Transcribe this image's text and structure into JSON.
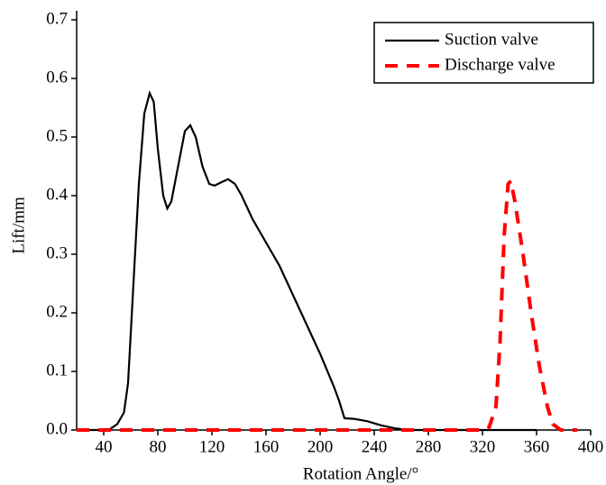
{
  "chart_data": {
    "type": "line",
    "xlabel": "Rotation Angle/°",
    "ylabel": "Lift/mm",
    "xlim": [
      20,
      400
    ],
    "xticks": [
      40,
      80,
      120,
      160,
      200,
      240,
      280,
      320,
      360,
      400
    ],
    "ylim": [
      0,
      0.7
    ],
    "yticks": [
      {
        "value": 0,
        "label": "0.0"
      },
      0.1,
      0.2,
      0.3,
      0.4,
      0.5,
      0.6,
      0.7
    ],
    "legend": "upper right",
    "series": [
      {
        "name": "Suction valve",
        "color": "#000000",
        "style": "solid",
        "x": [
          20,
          40,
          45,
          50,
          55,
          58,
          62,
          66,
          70,
          74,
          77,
          80,
          84,
          87,
          90,
          95,
          100,
          104,
          108,
          113,
          118,
          122,
          127,
          132,
          137,
          142,
          150,
          160,
          170,
          180,
          190,
          200,
          210,
          214,
          218,
          225,
          235,
          245,
          255,
          265,
          300,
          360
        ],
        "values": [
          0,
          0,
          0.002,
          0.01,
          0.03,
          0.08,
          0.25,
          0.42,
          0.54,
          0.575,
          0.56,
          0.48,
          0.4,
          0.378,
          0.39,
          0.45,
          0.51,
          0.52,
          0.5,
          0.45,
          0.42,
          0.417,
          0.423,
          0.428,
          0.42,
          0.4,
          0.36,
          0.32,
          0.28,
          0.23,
          0.18,
          0.13,
          0.075,
          0.05,
          0.02,
          0.019,
          0.015,
          0.008,
          0.003,
          0,
          0,
          0
        ]
      },
      {
        "name": "Discharge valve",
        "color": "#ff0000",
        "style": "dashed",
        "x": [
          20,
          320,
          325,
          330,
          333,
          336,
          339,
          341,
          344,
          350,
          356,
          362,
          368,
          372,
          378,
          390
        ],
        "values": [
          0,
          0,
          0.005,
          0.04,
          0.15,
          0.33,
          0.42,
          0.425,
          0.39,
          0.3,
          0.2,
          0.11,
          0.04,
          0.01,
          0,
          0
        ]
      }
    ]
  }
}
